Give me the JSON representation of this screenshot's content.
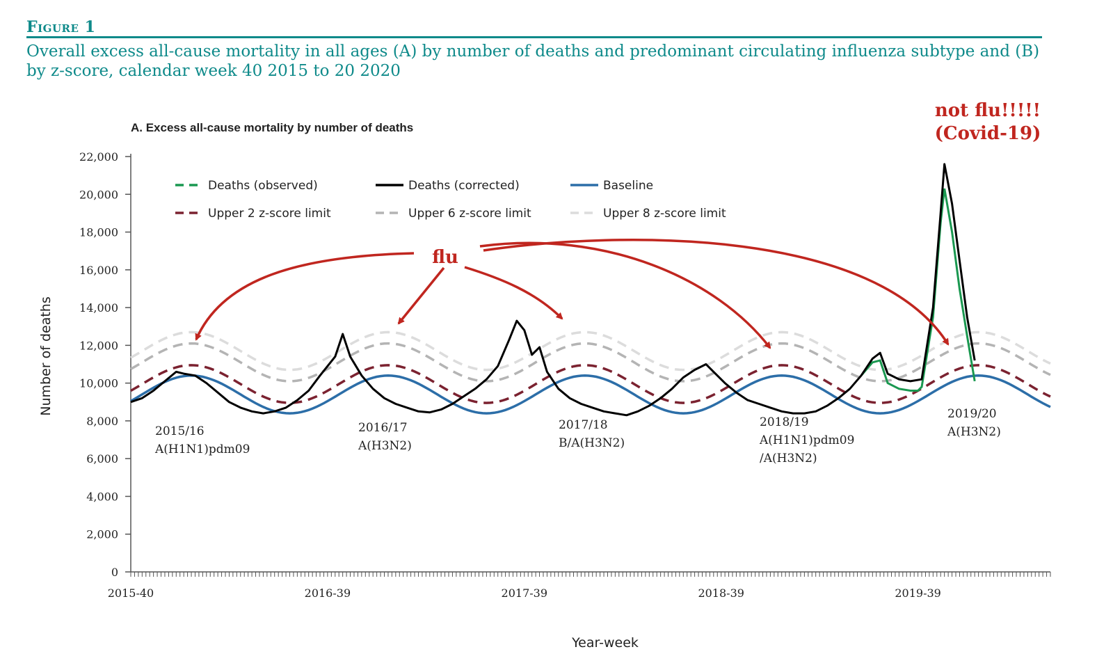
{
  "figure": {
    "label": "Figure 1",
    "caption": "Overall excess all-cause mortality in all ages (A) by number of deaths and predominant circulating influenza subtype and (B) by z-score, calendar week 40 2015 to 20 2020"
  },
  "chart_data": {
    "type": "line",
    "title": "A. Excess all-cause mortality by number of deaths",
    "xlabel": "Year-week",
    "ylabel": "Number of deaths",
    "ylim": [
      0,
      22000
    ],
    "yticks": [
      0,
      2000,
      4000,
      6000,
      8000,
      10000,
      12000,
      14000,
      16000,
      18000,
      20000,
      22000
    ],
    "ytick_labels": [
      "0",
      "2,000",
      "4,000",
      "6,000",
      "8,000",
      "10,000",
      "12,000",
      "14,000",
      "16,000",
      "18,000",
      "20,000",
      "22,000"
    ],
    "x_ticks": [
      {
        "label": "2015-40",
        "week": 0
      },
      {
        "label": "2016-39",
        "week": 52
      },
      {
        "label": "2017-39",
        "week": 104
      },
      {
        "label": "2018-39",
        "week": 156
      },
      {
        "label": "2019-39",
        "week": 208
      }
    ],
    "x_range_weeks": [
      0,
      243
    ],
    "legend": [
      {
        "key": "observed",
        "label": "Deaths (observed)",
        "color": "#1a9850",
        "style": "dashed"
      },
      {
        "key": "corrected",
        "label": "Deaths (corrected)",
        "color": "#000000",
        "style": "solid"
      },
      {
        "key": "baseline",
        "label": "Baseline",
        "color": "#2c6ea8",
        "style": "solid"
      },
      {
        "key": "z2",
        "label": "Upper 2 z-score limit",
        "color": "#7b2230",
        "style": "dashed"
      },
      {
        "key": "z6",
        "label": "Upper 6 z-score limit",
        "color": "#b4b4b4",
        "style": "dashed"
      },
      {
        "key": "z8",
        "label": "Upper 8 z-score limit",
        "color": "#dcdcdc",
        "style": "dashed"
      }
    ],
    "legend_placement": "top",
    "series_model": {
      "baseline_mean": 9400,
      "baseline_amplitude": 1000,
      "z2_offset": 550,
      "z6_offset": 1700,
      "z8_offset": 2300,
      "peak_week_in_season": 16
    },
    "corrected_points": [
      [
        0,
        9000
      ],
      [
        3,
        9200
      ],
      [
        6,
        9600
      ],
      [
        9,
        10100
      ],
      [
        12,
        10600
      ],
      [
        14,
        10500
      ],
      [
        17,
        10400
      ],
      [
        20,
        10000
      ],
      [
        23,
        9500
      ],
      [
        26,
        9000
      ],
      [
        29,
        8700
      ],
      [
        32,
        8500
      ],
      [
        35,
        8400
      ],
      [
        38,
        8500
      ],
      [
        41,
        8700
      ],
      [
        44,
        9100
      ],
      [
        47,
        9600
      ],
      [
        50,
        10400
      ],
      [
        54,
        11400
      ],
      [
        56,
        12600
      ],
      [
        58,
        11400
      ],
      [
        61,
        10400
      ],
      [
        64,
        9700
      ],
      [
        67,
        9200
      ],
      [
        70,
        8900
      ],
      [
        73,
        8700
      ],
      [
        76,
        8500
      ],
      [
        79,
        8450
      ],
      [
        82,
        8600
      ],
      [
        85,
        8900
      ],
      [
        88,
        9300
      ],
      [
        91,
        9700
      ],
      [
        94,
        10200
      ],
      [
        97,
        10900
      ],
      [
        100,
        12300
      ],
      [
        102,
        13300
      ],
      [
        104,
        12800
      ],
      [
        106,
        11500
      ],
      [
        108,
        11900
      ],
      [
        110,
        10600
      ],
      [
        113,
        9700
      ],
      [
        116,
        9200
      ],
      [
        119,
        8900
      ],
      [
        122,
        8700
      ],
      [
        125,
        8500
      ],
      [
        128,
        8400
      ],
      [
        131,
        8300
      ],
      [
        134,
        8500
      ],
      [
        137,
        8800
      ],
      [
        140,
        9200
      ],
      [
        143,
        9700
      ],
      [
        146,
        10300
      ],
      [
        149,
        10700
      ],
      [
        152,
        11000
      ],
      [
        154,
        10600
      ],
      [
        157,
        10000
      ],
      [
        160,
        9500
      ],
      [
        163,
        9100
      ],
      [
        166,
        8900
      ],
      [
        169,
        8700
      ],
      [
        172,
        8500
      ],
      [
        175,
        8400
      ],
      [
        178,
        8400
      ],
      [
        181,
        8500
      ],
      [
        184,
        8800
      ],
      [
        187,
        9200
      ],
      [
        190,
        9700
      ],
      [
        193,
        10400
      ],
      [
        196,
        11300
      ],
      [
        198,
        11600
      ],
      [
        200,
        10500
      ],
      [
        203,
        10200
      ],
      [
        206,
        10100
      ],
      [
        209,
        10200
      ],
      [
        212,
        14000
      ],
      [
        214,
        19000
      ],
      [
        215,
        21600
      ],
      [
        217,
        19500
      ],
      [
        219,
        16500
      ],
      [
        221,
        13500
      ],
      [
        223,
        11200
      ]
    ],
    "observed_points": [
      [
        193,
        10400
      ],
      [
        196,
        11100
      ],
      [
        198,
        11200
      ],
      [
        200,
        10000
      ],
      [
        203,
        9700
      ],
      [
        206,
        9600
      ],
      [
        208,
        9600
      ],
      [
        209,
        9800
      ],
      [
        212,
        13500
      ],
      [
        214,
        18500
      ],
      [
        215,
        20300
      ],
      [
        217,
        18000
      ],
      [
        219,
        15000
      ],
      [
        221,
        12500
      ],
      [
        223,
        10100
      ]
    ],
    "season_labels": [
      {
        "season": "2015/16",
        "subtype": "A(H1N1)pdm09"
      },
      {
        "season": "2016/17",
        "subtype": "A(H3N2)"
      },
      {
        "season": "2017/18",
        "subtype": "B/A(H3N2)"
      },
      {
        "season": "2018/19",
        "subtype": "A(H1N1)pdm09",
        "subtype2": "/A(H3N2)"
      },
      {
        "season": "2019/20",
        "subtype": "A(H3N2)"
      }
    ],
    "annotations": {
      "flu": "flu",
      "covid_line1": "not flu!!!!!",
      "covid_line2": "(Covid-19)",
      "annotation_color": "#c0261f"
    }
  }
}
